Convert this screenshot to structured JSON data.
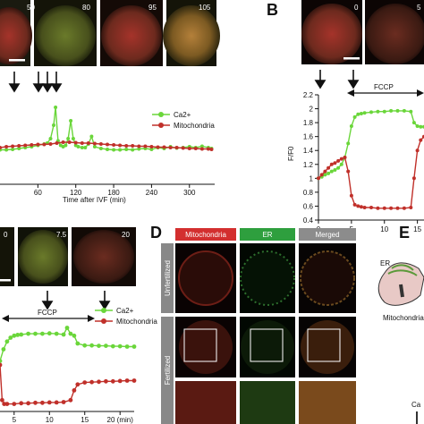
{
  "panels": {
    "A": {
      "letter": "",
      "timestamps": [
        "50",
        "80",
        "95",
        "105"
      ],
      "legend": [
        "Ca2+",
        "Mitochondria"
      ],
      "xlabel": "Time after IVF (min)",
      "xticks": [
        "60",
        "120",
        "180",
        "240",
        "300"
      ]
    },
    "B": {
      "letter": "B",
      "timestamps": [
        "0",
        "5"
      ],
      "annotation": "FCCP",
      "ylabel": "F/F0",
      "yticks": [
        "0.4",
        "0.6",
        "0.8",
        "1",
        "1.2",
        "1.4",
        "1.6",
        "1.8",
        "2",
        "2.2"
      ],
      "xticks": [
        "0",
        "5",
        "10",
        "15"
      ]
    },
    "C": {
      "letter": "",
      "timestamps": [
        "0",
        "7.5",
        "20"
      ],
      "annotation": "FCCP",
      "legend": [
        "Ca2+",
        "Mitochondria"
      ],
      "xticks": [
        "5",
        "10",
        "15",
        "20 (min)"
      ]
    },
    "D": {
      "letter": "D",
      "headers": [
        "Mitochondria",
        "ER",
        "Merged"
      ],
      "rows": [
        "Unfertilized",
        "Fertilized"
      ]
    },
    "E": {
      "letter": "E",
      "labels": [
        "ER",
        "Mitochondria",
        "Ca"
      ]
    }
  },
  "colors": {
    "ca": "#6ad63a",
    "mito": "#c0302a",
    "green_dye": "#3fae3f",
    "red_dye": "#c4322b"
  },
  "chart_data": [
    {
      "type": "line",
      "xlabel": "Time after IVF (min)",
      "xlim": [
        0,
        340
      ],
      "ylim": [
        0.4,
        2.2
      ],
      "series": [
        {
          "name": "Ca2+",
          "x": [
            0,
            10,
            20,
            30,
            40,
            50,
            60,
            70,
            75,
            80,
            85,
            88,
            92,
            96,
            100,
            104,
            108,
            112,
            116,
            120,
            124,
            130,
            135,
            140,
            145,
            150,
            160,
            170,
            180,
            190,
            200,
            210,
            220,
            230,
            240,
            250,
            260,
            270,
            280,
            290,
            300,
            310,
            320,
            330,
            335
          ],
          "y": [
            1.05,
            1.05,
            1.06,
            1.08,
            1.1,
            1.12,
            1.15,
            1.18,
            1.2,
            1.3,
            1.6,
            2.0,
            1.25,
            1.15,
            1.12,
            1.15,
            1.3,
            1.7,
            1.3,
            1.15,
            1.12,
            1.1,
            1.1,
            1.18,
            1.35,
            1.12,
            1.08,
            1.06,
            1.05,
            1.05,
            1.06,
            1.05,
            1.07,
            1.08,
            1.06,
            1.1,
            1.08,
            1.12,
            1.09,
            1.1,
            1.12,
            1.1,
            1.13,
            1.1,
            1.08
          ]
        },
        {
          "name": "Mitochondria",
          "x": [
            0,
            10,
            20,
            30,
            40,
            50,
            60,
            70,
            80,
            90,
            100,
            110,
            120,
            130,
            140,
            150,
            160,
            170,
            180,
            190,
            200,
            210,
            220,
            230,
            240,
            250,
            260,
            270,
            280,
            290,
            300,
            310,
            320,
            330,
            335
          ],
          "y": [
            1.1,
            1.12,
            1.13,
            1.14,
            1.15,
            1.16,
            1.17,
            1.17,
            1.18,
            1.2,
            1.22,
            1.22,
            1.21,
            1.2,
            1.2,
            1.19,
            1.18,
            1.17,
            1.16,
            1.15,
            1.14,
            1.14,
            1.13,
            1.13,
            1.12,
            1.11,
            1.11,
            1.1,
            1.1,
            1.09,
            1.08,
            1.08,
            1.07,
            1.07,
            1.06
          ]
        }
      ]
    },
    {
      "type": "line",
      "ylabel": "F/F0",
      "xlim": [
        0,
        16
      ],
      "ylim": [
        0.4,
        2.2
      ],
      "series": [
        {
          "name": "Ca2+",
          "x": [
            0,
            0.5,
            1,
            1.5,
            2,
            2.5,
            3,
            3.5,
            4,
            4.5,
            5,
            5.5,
            6,
            6.5,
            7,
            8,
            9,
            10,
            11,
            12,
            13,
            14,
            14.5,
            15,
            15.5,
            16
          ],
          "y": [
            1.0,
            1.02,
            1.05,
            1.07,
            1.1,
            1.12,
            1.15,
            1.2,
            1.3,
            1.5,
            1.75,
            1.88,
            1.92,
            1.93,
            1.94,
            1.95,
            1.96,
            1.96,
            1.97,
            1.97,
            1.97,
            1.96,
            1.8,
            1.75,
            1.74,
            1.74
          ]
        },
        {
          "name": "Mitochondria",
          "x": [
            0,
            0.5,
            1,
            1.5,
            2,
            2.5,
            3,
            3.5,
            4,
            4.5,
            5,
            5.5,
            6,
            6.5,
            7,
            8,
            9,
            10,
            11,
            12,
            13,
            14,
            14.5,
            15,
            15.5,
            16
          ],
          "y": [
            1.0,
            1.05,
            1.1,
            1.15,
            1.2,
            1.22,
            1.25,
            1.28,
            1.3,
            1.1,
            0.75,
            0.62,
            0.6,
            0.59,
            0.58,
            0.58,
            0.57,
            0.57,
            0.57,
            0.57,
            0.57,
            0.58,
            1.0,
            1.4,
            1.55,
            1.6
          ]
        }
      ]
    },
    {
      "type": "line",
      "xlim": [
        3,
        22
      ],
      "series": [
        {
          "name": "Ca2+",
          "x": [
            3,
            3.5,
            4,
            4.5,
            5,
            5.5,
            6,
            7,
            8,
            9,
            10,
            11,
            12,
            12.5,
            13,
            13.5,
            14,
            15,
            16,
            17,
            18,
            19,
            20,
            21,
            22
          ],
          "y": [
            1.6,
            1.9,
            2.1,
            2.2,
            2.25,
            2.27,
            2.28,
            2.3,
            2.3,
            2.3,
            2.31,
            2.3,
            2.28,
            2.45,
            2.3,
            2.25,
            2.05,
            2.0,
            2.0,
            1.99,
            1.99,
            1.98,
            1.98,
            1.97,
            1.97
          ]
        },
        {
          "name": "Mitochondria",
          "x": [
            3,
            3.3,
            3.6,
            4,
            5,
            6,
            7,
            8,
            9,
            10,
            11,
            12,
            13,
            13.5,
            14,
            15,
            16,
            17,
            18,
            19,
            20,
            21,
            22
          ],
          "y": [
            1.5,
            0.6,
            0.5,
            0.5,
            0.5,
            0.52,
            0.52,
            0.53,
            0.53,
            0.54,
            0.54,
            0.55,
            0.6,
            0.85,
            1.0,
            1.05,
            1.06,
            1.07,
            1.08,
            1.08,
            1.09,
            1.1,
            1.1
          ]
        }
      ]
    }
  ]
}
